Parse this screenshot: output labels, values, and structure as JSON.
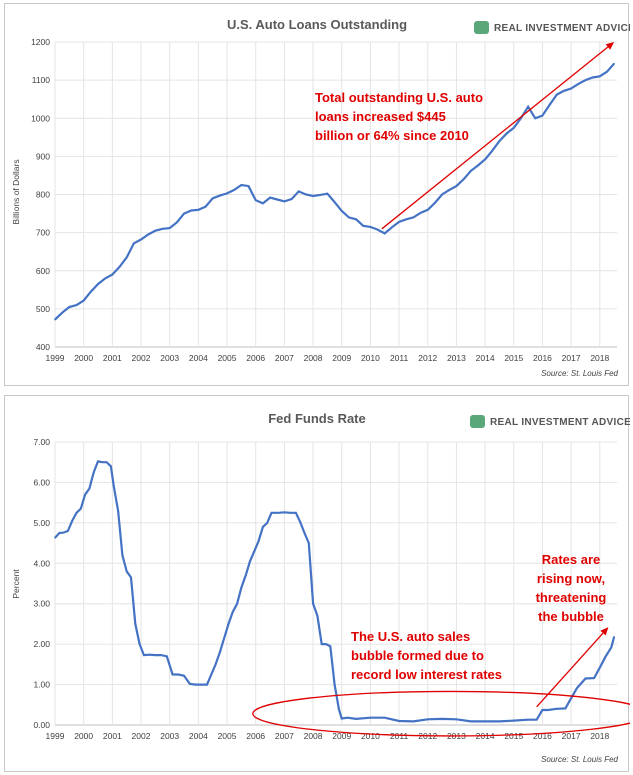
{
  "brand": {
    "name": "REAL INVESTMENT ADVICE",
    "color": "#5aa87a",
    "icon": "chat-bubble-icon"
  },
  "chart_data": [
    {
      "type": "line",
      "title": "U.S. Auto Loans Outstanding",
      "ylabel": "Billions of Dollars",
      "xlabel": "",
      "source": "Source: St. Louis Fed",
      "xlim": [
        1999,
        2018.6
      ],
      "ylim": [
        400,
        1200
      ],
      "yticks": [
        400,
        500,
        600,
        700,
        800,
        900,
        1000,
        1100,
        1200
      ],
      "ytick_labels": [
        "400",
        "500",
        "600",
        "700",
        "800",
        "900",
        "1000",
        "1100",
        "1200"
      ],
      "xticks": [
        "1999",
        "2000",
        "2001",
        "2002",
        "2003",
        "2004",
        "2005",
        "2006",
        "2007",
        "2008",
        "2009",
        "2010",
        "2011",
        "2012",
        "2013",
        "2014",
        "2015",
        "2016",
        "2017",
        "2018"
      ],
      "grid": true,
      "line_color": "#4472c4",
      "x": [
        1999.0,
        1999.25,
        1999.5,
        1999.75,
        2000.0,
        2000.25,
        2000.5,
        2000.75,
        2001.0,
        2001.25,
        2001.5,
        2001.75,
        2002.0,
        2002.25,
        2002.5,
        2002.75,
        2003.0,
        2003.25,
        2003.5,
        2003.75,
        2004.0,
        2004.25,
        2004.5,
        2004.75,
        2005.0,
        2005.25,
        2005.5,
        2005.75,
        2006.0,
        2006.25,
        2006.5,
        2006.75,
        2007.0,
        2007.25,
        2007.5,
        2007.75,
        2008.0,
        2008.25,
        2008.5,
        2008.75,
        2009.0,
        2009.25,
        2009.5,
        2009.75,
        2010.0,
        2010.25,
        2010.5,
        2010.75,
        2011.0,
        2011.25,
        2011.5,
        2011.75,
        2012.0,
        2012.25,
        2012.5,
        2012.75,
        2013.0,
        2013.25,
        2013.5,
        2013.75,
        2014.0,
        2014.25,
        2014.5,
        2014.75,
        2015.0,
        2015.25,
        2015.5,
        2015.75,
        2016.0,
        2016.25,
        2016.5,
        2016.75,
        2017.0,
        2017.25,
        2017.5,
        2017.75,
        2018.0,
        2018.25,
        2018.5
      ],
      "series": [
        {
          "values": [
            472,
            490,
            505,
            510,
            522,
            545,
            565,
            580,
            590,
            610,
            635,
            672,
            682,
            695,
            705,
            710,
            712,
            727,
            750,
            758,
            760,
            768,
            790,
            797,
            803,
            812,
            825,
            822,
            785,
            777,
            792,
            787,
            782,
            788,
            808,
            800,
            796,
            799,
            802,
            780,
            757,
            740,
            735,
            718,
            715,
            708,
            698,
            714,
            728,
            735,
            740,
            752,
            760,
            778,
            800,
            812,
            822,
            840,
            862,
            876,
            892,
            915,
            940,
            960,
            975,
            1000,
            1030,
            1000,
            1007,
            1035,
            1062,
            1072,
            1078,
            1090,
            1100,
            1107,
            1110,
            1122,
            1143
          ]
        }
      ],
      "annotation": "Total outstanding U.S. auto loans increased $445 billion or 64% since 2010",
      "annotation_lines": [
        "Total outstanding U.S. auto",
        "loans increased $445",
        "billion or 64% since 2010"
      ],
      "annotation_color": "#e00000",
      "arrow": {
        "from": [
          2010.4,
          710
        ],
        "to": [
          2018.5,
          1200
        ]
      }
    },
    {
      "type": "line",
      "title": "Fed Funds Rate",
      "ylabel": "Percent",
      "xlabel": "",
      "source": "Source: St. Louis Fed",
      "xlim": [
        1999,
        2018.6
      ],
      "ylim": [
        0,
        7
      ],
      "yticks": [
        0,
        1,
        2,
        3,
        4,
        5,
        6,
        7
      ],
      "ytick_labels": [
        "0.00",
        "1.00",
        "2.00",
        "3.00",
        "4.00",
        "5.00",
        "6.00",
        "7.00"
      ],
      "xticks": [
        "1999",
        "2000",
        "2001",
        "2002",
        "2003",
        "2004",
        "2005",
        "2006",
        "2007",
        "2008",
        "2009",
        "2010",
        "2011",
        "2012",
        "2013",
        "2014",
        "2015",
        "2016",
        "2017",
        "2018"
      ],
      "grid": true,
      "line_color": "#4472c4",
      "x": [
        1999.0,
        1999.15,
        1999.3,
        1999.45,
        1999.6,
        1999.75,
        1999.9,
        2000.05,
        2000.2,
        2000.35,
        2000.5,
        2000.65,
        2000.8,
        2000.95,
        2001.05,
        2001.2,
        2001.35,
        2001.5,
        2001.65,
        2001.8,
        2001.95,
        2002.1,
        2002.3,
        2002.5,
        2002.7,
        2002.9,
        2003.1,
        2003.3,
        2003.5,
        2003.7,
        2003.9,
        2004.1,
        2004.3,
        2004.45,
        2004.6,
        2004.75,
        2004.9,
        2005.05,
        2005.2,
        2005.35,
        2005.5,
        2005.65,
        2005.8,
        2005.95,
        2006.1,
        2006.25,
        2006.4,
        2006.55,
        2006.8,
        2007.0,
        2007.2,
        2007.4,
        2007.55,
        2007.7,
        2007.85,
        2008.0,
        2008.15,
        2008.3,
        2008.45,
        2008.6,
        2008.75,
        2008.9,
        2009.0,
        2009.2,
        2009.5,
        2010.0,
        2010.5,
        2011.0,
        2011.5,
        2012.0,
        2012.5,
        2013.0,
        2013.5,
        2014.0,
        2014.5,
        2015.0,
        2015.5,
        2015.8,
        2016.0,
        2016.2,
        2016.5,
        2016.8,
        2017.0,
        2017.2,
        2017.5,
        2017.8,
        2018.0,
        2018.2,
        2018.4,
        2018.5
      ],
      "series": [
        {
          "values": [
            4.63,
            4.75,
            4.76,
            4.8,
            5.05,
            5.25,
            5.35,
            5.7,
            5.85,
            6.25,
            6.52,
            6.5,
            6.5,
            6.4,
            5.9,
            5.3,
            4.2,
            3.8,
            3.65,
            2.5,
            2.0,
            1.73,
            1.74,
            1.73,
            1.73,
            1.7,
            1.25,
            1.25,
            1.22,
            1.02,
            1.0,
            1.0,
            1.0,
            1.25,
            1.5,
            1.8,
            2.15,
            2.5,
            2.8,
            3.0,
            3.4,
            3.7,
            4.05,
            4.3,
            4.55,
            4.9,
            5.0,
            5.25,
            5.25,
            5.26,
            5.25,
            5.25,
            5.02,
            4.75,
            4.5,
            3.0,
            2.7,
            2.0,
            2.0,
            1.95,
            1.0,
            0.39,
            0.16,
            0.18,
            0.15,
            0.18,
            0.18,
            0.1,
            0.09,
            0.14,
            0.15,
            0.14,
            0.09,
            0.09,
            0.09,
            0.11,
            0.13,
            0.13,
            0.37,
            0.37,
            0.4,
            0.41,
            0.66,
            0.91,
            1.15,
            1.16,
            1.42,
            1.69,
            1.92,
            2.18
          ]
        }
      ],
      "annotations": [
        {
          "text": "The U.S. auto sales bubble formed due to record low interest rates",
          "lines": [
            "The U.S. auto sales",
            "bubble formed due to",
            "record low interest rates"
          ]
        },
        {
          "text": "Rates are rising now, threatening the bubble",
          "lines": [
            "Rates are",
            "rising now,",
            "threatening",
            "the bubble"
          ]
        }
      ],
      "annotation_color": "#e00000",
      "ellipse": {
        "cx": 2012.8,
        "cy": 0.28,
        "rx_years": 6.9,
        "ry": 0.55
      },
      "arrow": {
        "from": [
          2015.8,
          0.45
        ],
        "to": [
          2018.3,
          2.42
        ]
      }
    }
  ]
}
